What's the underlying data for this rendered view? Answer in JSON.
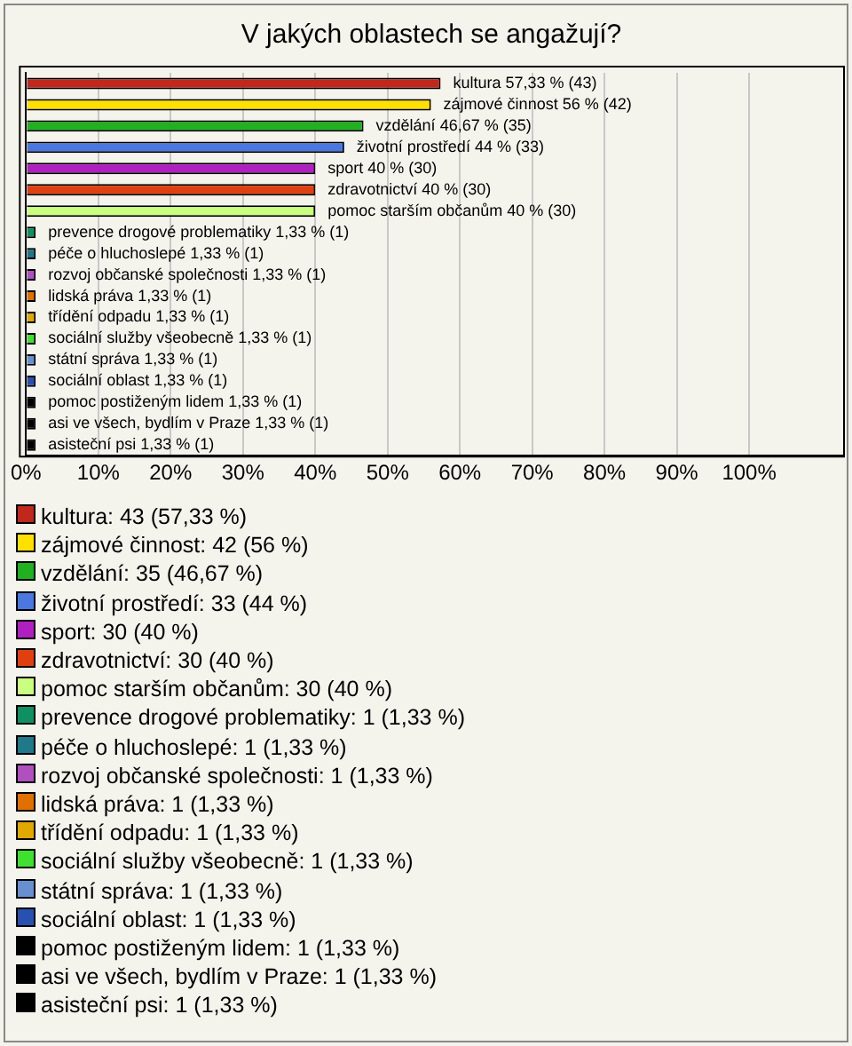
{
  "chart_data": {
    "type": "bar",
    "orientation": "horizontal",
    "title": "V jakých oblastech se angažují?",
    "categories": [
      null,
      null,
      null,
      null,
      null,
      null,
      null,
      null,
      null,
      null,
      null,
      null,
      null,
      null,
      null,
      null,
      null,
      null
    ],
    "values": [
      57.33,
      56,
      46.67,
      44,
      40,
      40,
      40,
      1.33,
      1.33,
      1.33,
      1.33,
      1.33,
      1.33,
      1.33,
      1.33,
      1.33,
      1.33,
      1.33
    ],
    "colors": [
      "#c0281c",
      "#ffe000",
      "#20b020",
      "#4a78e0",
      "#b020c0",
      "#e04010",
      "#c8ff80",
      "#109060",
      "#207888",
      "#b050c0",
      "#e07000",
      "#e0a800",
      "#40e030",
      "#6890d0",
      "#2850b0",
      "#000000",
      "#000000",
      "#000000"
    ],
    "value_labels": [
      "kultura 57,33 % (43)",
      "zájmové činnost 56 % (42)",
      "vzdělání 46,67 % (35)",
      "životní prostředí 44 % (33)",
      "sport 40 % (30)",
      "zdravotnictví 40 % (30)",
      "pomoc starším občanům 40 % (30)",
      "prevence drogové problematiky 1,33 % (1)",
      "péče o hluchoslepé 1,33 % (1)",
      "rozvoj občanské společnosti 1,33 % (1)",
      "lidská práva 1,33 % (1)",
      "třídění odpadu 1,33 % (1)",
      "sociální služby všeobecně 1,33 % (1)",
      "státní správa 1,33 % (1)",
      "sociální oblast 1,33 % (1)",
      "pomoc postiženým lidem 1,33 % (1)",
      "asi ve všech, bydlím v Praze 1,33 % (1)",
      "asisteční psi 1,33 % (1)"
    ],
    "xlim": [
      0,
      113
    ],
    "xticks": [
      {
        "value": 0,
        "label": "0%"
      },
      {
        "value": 10,
        "label": "10%"
      },
      {
        "value": 20,
        "label": "20%"
      },
      {
        "value": 30,
        "label": "30%"
      },
      {
        "value": 40,
        "label": "40%"
      },
      {
        "value": 50,
        "label": "50%"
      },
      {
        "value": 60,
        "label": "60%"
      },
      {
        "value": 70,
        "label": "70%"
      },
      {
        "value": 80,
        "label": "80%"
      },
      {
        "value": 90,
        "label": "90%"
      },
      {
        "value": 100,
        "label": "100%"
      }
    ],
    "grid": "x",
    "tick_labels": "x",
    "legend": false,
    "annotations": [
      "kultura: 43 (57,33 %)",
      "zájmové činnost: 42 (56 %)",
      "vzdělání: 35 (46,67 %)",
      "životní prostředí: 33 (44 %)",
      "sport: 30 (40 %)",
      "zdravotnictví: 30 (40 %)",
      "pomoc starším občanům: 30 (40 %)",
      "prevence drogové problematiky: 1 (1,33 %)",
      "péče o hluchoslepé: 1 (1,33 %)",
      "rozvoj občanské společnosti: 1 (1,33 %)",
      "lidská práva: 1 (1,33 %)",
      "třídění odpadu: 1 (1,33 %)",
      "sociální služby všeobecně: 1 (1,33 %)",
      "státní správa: 1 (1,33 %)",
      "sociální oblast: 1 (1,33 %)",
      "pomoc postiženým lidem: 1 (1,33 %)",
      "asi ve všech, bydlím v Praze: 1 (1,33 %)",
      "asisteční psi: 1 (1,33 %)"
    ]
  }
}
